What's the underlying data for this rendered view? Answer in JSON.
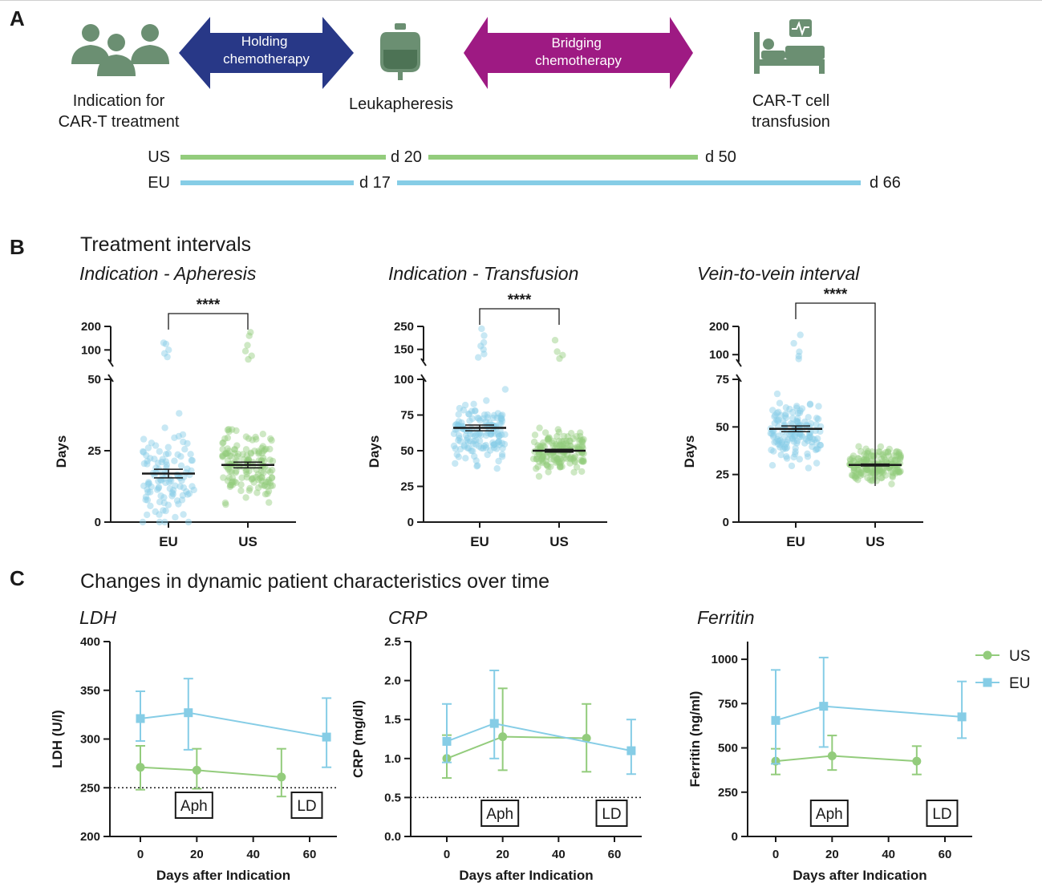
{
  "panels": {
    "a": "A",
    "b": "B",
    "c": "C"
  },
  "colors": {
    "us": "#93cc7c",
    "eu": "#86cde6",
    "holding": "#283887",
    "bridging": "#9e1a83",
    "icon": "#6b8f72"
  },
  "panel_a": {
    "steps": [
      {
        "label": "Indication for\nCAR-T treatment",
        "icon": "people-icon"
      },
      {
        "label": "Leukapheresis",
        "icon": "blood-bag-icon"
      },
      {
        "label": "CAR-T cell\ntransfusion",
        "icon": "hospital-bed-icon"
      }
    ],
    "arrows": {
      "holding": "Holding\nchemotherapy",
      "bridging": "Bridging\nchemotherapy"
    },
    "timelines": [
      {
        "name": "US",
        "mid_label": "d 20",
        "end_label": "d 50"
      },
      {
        "name": "EU",
        "mid_label": "d 17",
        "end_label": "d 66"
      }
    ]
  },
  "panel_b": {
    "section_title": "Treatment intervals"
  },
  "panel_c": {
    "section_title": "Changes in dynamic patient characteristics over time",
    "legend": [
      {
        "name": "US"
      },
      {
        "name": "EU"
      }
    ],
    "markers": [
      "Aph",
      "LD"
    ]
  },
  "chart_data": [
    {
      "type": "scatter",
      "title": "Indication - Apheresis",
      "ylabel": "Days",
      "categories": [
        "EU",
        "US"
      ],
      "y_ticks_lower": [
        0,
        25,
        50
      ],
      "y_ticks_upper": [
        100,
        200
      ],
      "ylim": [
        0,
        200
      ],
      "y_break": 50,
      "significance": "****",
      "summary": [
        {
          "name": "EU",
          "mean": 17,
          "sem_low": 15.5,
          "sem_high": 18.5
        },
        {
          "name": "US",
          "mean": 20,
          "sem_low": 19,
          "sem_high": 21
        }
      ]
    },
    {
      "type": "scatter",
      "title": "Indication - Transfusion",
      "ylabel": "Days",
      "categories": [
        "EU",
        "US"
      ],
      "y_ticks_lower": [
        0,
        25,
        50,
        75,
        100
      ],
      "y_ticks_upper": [
        150,
        250
      ],
      "ylim": [
        0,
        250
      ],
      "y_break": 100,
      "significance": "****",
      "summary": [
        {
          "name": "EU",
          "mean": 66,
          "sem_low": 64,
          "sem_high": 68
        },
        {
          "name": "US",
          "mean": 50,
          "sem_low": 49,
          "sem_high": 51
        }
      ]
    },
    {
      "type": "scatter",
      "title": "Vein-to-vein interval",
      "ylabel": "Days",
      "categories": [
        "EU",
        "US"
      ],
      "y_ticks_lower": [
        0,
        25,
        50,
        75
      ],
      "y_ticks_upper": [
        100,
        200
      ],
      "ylim": [
        0,
        200
      ],
      "y_break": 75,
      "significance": "****",
      "summary": [
        {
          "name": "EU",
          "mean": 49,
          "sem_low": 47.5,
          "sem_high": 50.5
        },
        {
          "name": "US",
          "mean": 30,
          "sem_low": 29.5,
          "sem_high": 30.5
        }
      ]
    },
    {
      "type": "line",
      "title": "LDH",
      "xlabel": "Days after Indication",
      "ylabel": "LDH (U/l)",
      "x_ticks": [
        0,
        20,
        40,
        60
      ],
      "y_ticks": [
        200,
        250,
        300,
        350,
        400
      ],
      "xlim": [
        -8,
        70
      ],
      "ylim": [
        200,
        400
      ],
      "reference_line": 250,
      "markers": [
        {
          "label": "Aph",
          "x": 19
        },
        {
          "label": "LD",
          "x": 59
        }
      ],
      "series": [
        {
          "name": "US",
          "x": [
            0,
            20,
            50
          ],
          "y": [
            271,
            268,
            261
          ],
          "err_low": [
            248,
            249,
            241
          ],
          "err_high": [
            293,
            290,
            290
          ]
        },
        {
          "name": "EU",
          "x": [
            0,
            17,
            66
          ],
          "y": [
            321,
            327,
            302
          ],
          "err_low": [
            298,
            289,
            271
          ],
          "err_high": [
            349,
            362,
            342
          ]
        }
      ]
    },
    {
      "type": "line",
      "title": "CRP",
      "xlabel": "Days after Indication",
      "ylabel": "CRP (mg/dl)",
      "x_ticks": [
        0,
        20,
        40,
        60
      ],
      "y_ticks": [
        0.0,
        0.5,
        1.0,
        1.5,
        2.0,
        2.5
      ],
      "xlim": [
        -8,
        70
      ],
      "ylim": [
        0,
        2.5
      ],
      "reference_line": 0.5,
      "markers": [
        {
          "label": "Aph",
          "x": 19
        },
        {
          "label": "LD",
          "x": 59
        }
      ],
      "series": [
        {
          "name": "US",
          "x": [
            0,
            20,
            50
          ],
          "y": [
            1.0,
            1.28,
            1.26
          ],
          "err_low": [
            0.75,
            0.85,
            0.83
          ],
          "err_high": [
            1.3,
            1.9,
            1.7
          ]
        },
        {
          "name": "EU",
          "x": [
            0,
            17,
            66
          ],
          "y": [
            1.22,
            1.45,
            1.1
          ],
          "err_low": [
            0.95,
            1.0,
            0.8
          ],
          "err_high": [
            1.7,
            2.13,
            1.5
          ]
        }
      ]
    },
    {
      "type": "line",
      "title": "Ferritin",
      "xlabel": "Days after Indication",
      "ylabel": "Ferritin (ng/ml)",
      "x_ticks": [
        0,
        20,
        40,
        60
      ],
      "y_ticks": [
        0,
        250,
        500,
        750,
        1000
      ],
      "xlim": [
        -8,
        70
      ],
      "ylim": [
        0,
        1100
      ],
      "markers": [
        {
          "label": "Aph",
          "x": 19
        },
        {
          "label": "LD",
          "x": 59
        }
      ],
      "series": [
        {
          "name": "US",
          "x": [
            0,
            20,
            50
          ],
          "y": [
            425,
            455,
            425
          ],
          "err_low": [
            350,
            375,
            350
          ],
          "err_high": [
            495,
            570,
            510
          ]
        },
        {
          "name": "EU",
          "x": [
            0,
            17,
            66
          ],
          "y": [
            655,
            735,
            675
          ],
          "err_low": [
            410,
            505,
            555
          ],
          "err_high": [
            940,
            1010,
            875
          ]
        }
      ]
    }
  ]
}
